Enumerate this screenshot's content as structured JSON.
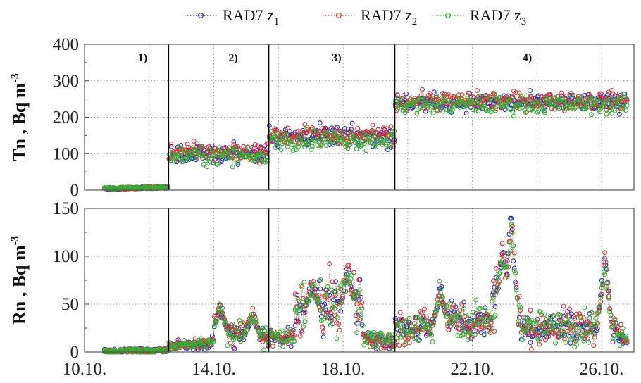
{
  "legend": [
    {
      "label": "RAD7  z",
      "sub": "1",
      "color": "#2b2bb8"
    },
    {
      "label": "RAD7 z",
      "sub": "2",
      "color": "#e03030"
    },
    {
      "label": "RAD7 z",
      "sub": "3",
      "color": "#33b033"
    }
  ],
  "chart_data": [
    {
      "type": "scatter",
      "panel": "top",
      "ylabel": "Tn , Bq m",
      "ylabel_sup": "-3",
      "ylim": [
        0,
        400
      ],
      "yticks": [
        0,
        100,
        200,
        300,
        400
      ],
      "xlim": [
        10.0,
        27.0
      ],
      "grid": true,
      "period_boundaries": [
        12.6,
        15.7,
        19.6
      ],
      "period_labels": [
        {
          "text": "1)",
          "x": 11.8
        },
        {
          "text": "2)",
          "x": 14.6
        },
        {
          "text": "3)",
          "x": 17.8
        },
        {
          "text": "4)",
          "x": 23.7
        }
      ],
      "periods": [
        {
          "x_range": [
            10.6,
            12.6
          ],
          "mean": [
            3,
            3,
            3
          ],
          "spread": 3,
          "note": "near zero"
        },
        {
          "x_range": [
            12.6,
            15.7
          ],
          "mean": [
            100,
            105,
            95
          ],
          "spread": 32
        },
        {
          "x_range": [
            15.7,
            19.6
          ],
          "mean": [
            148,
            150,
            140
          ],
          "spread": 35
        },
        {
          "x_range": [
            19.6,
            26.8
          ],
          "mean": [
            240,
            245,
            235
          ],
          "spread": 32
        }
      ],
      "series": [
        {
          "name": "RAD7  z1",
          "color": "#2b2bb8"
        },
        {
          "name": "RAD7 z2",
          "color": "#e03030"
        },
        {
          "name": "RAD7 z3",
          "color": "#33b033"
        }
      ]
    },
    {
      "type": "scatter",
      "panel": "bottom",
      "ylabel": "Rn , Bq m",
      "ylabel_sup": "-3",
      "ylim": [
        0,
        150
      ],
      "yticks": [
        0,
        50,
        100,
        150
      ],
      "xlim": [
        10.0,
        27.0
      ],
      "xticks": [
        10,
        14,
        18,
        22,
        26
      ],
      "xtick_labels": [
        "10.10.",
        "14.10.",
        "18.10.",
        "22.10.",
        "26.10."
      ],
      "grid": true,
      "period_boundaries": [
        12.6,
        15.7,
        19.6
      ],
      "baseline_segments": [
        {
          "x": [
            10.6,
            12.6
          ],
          "y": [
            1,
            2
          ]
        },
        {
          "x": [
            12.6,
            14.0
          ],
          "y": [
            6,
            10
          ]
        },
        {
          "x": [
            14.0,
            16.5
          ],
          "y": [
            22,
            14
          ]
        },
        {
          "x": [
            16.5,
            18.6
          ],
          "y": [
            45,
            50
          ]
        },
        {
          "x": [
            18.6,
            19.6
          ],
          "y": [
            15,
            10
          ]
        },
        {
          "x": [
            19.6,
            21.0
          ],
          "y": [
            25,
            28
          ]
        },
        {
          "x": [
            21.0,
            22.6
          ],
          "y": [
            35,
            30
          ]
        },
        {
          "x": [
            22.6,
            23.5
          ],
          "y": [
            60,
            45
          ]
        },
        {
          "x": [
            23.5,
            25.8
          ],
          "y": [
            25,
            28
          ]
        },
        {
          "x": [
            25.8,
            26.8
          ],
          "y": [
            35,
            15
          ]
        }
      ],
      "peaks": [
        {
          "x": 14.2,
          "y": 55
        },
        {
          "x": 15.2,
          "y": 45
        },
        {
          "x": 17.05,
          "y": 78
        },
        {
          "x": 18.15,
          "y": 92
        },
        {
          "x": 21.0,
          "y": 75
        },
        {
          "x": 22.95,
          "y": 115
        },
        {
          "x": 23.2,
          "y": 145
        },
        {
          "x": 26.1,
          "y": 105
        }
      ],
      "series": [
        {
          "name": "RAD7  z1",
          "color": "#2b2bb8"
        },
        {
          "name": "RAD7 z2",
          "color": "#e03030"
        },
        {
          "name": "RAD7 z3",
          "color": "#33b033"
        }
      ]
    }
  ]
}
